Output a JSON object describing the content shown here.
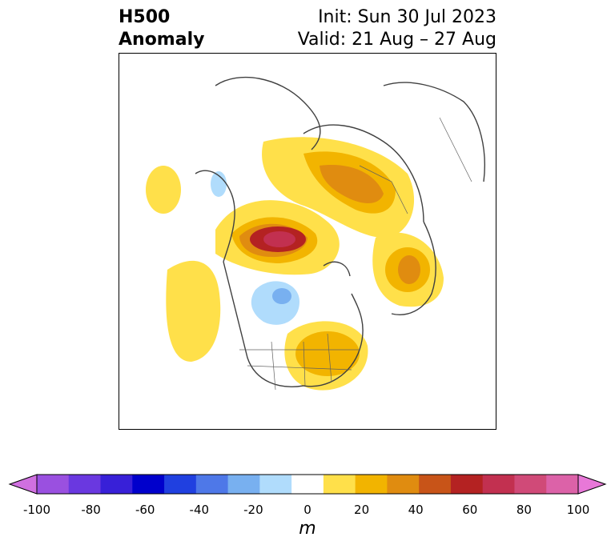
{
  "title": {
    "line1_left": "H500",
    "line2_left": "Anomaly",
    "line1_right": "Init: Sun 30 Jul 2023",
    "line2_right": "Valid: 21 Aug – 27 Aug"
  },
  "colorbar": {
    "unit": "m",
    "tick_labels": [
      "-100",
      "-80",
      "-60",
      "-40",
      "-20",
      "0",
      "20",
      "40",
      "60",
      "80",
      "100"
    ],
    "colors": [
      "#d070e0",
      "#9a50e0",
      "#6a38e0",
      "#3820d8",
      "#0000cc",
      "#2040e0",
      "#4e78e8",
      "#78b0f0",
      "#b0dcfc",
      "#ffffff",
      "#ffe04a",
      "#f2b400",
      "#e08c10",
      "#c85418",
      "#b42222",
      "#c23050",
      "#d04a78",
      "#dc62a8",
      "#e878d8"
    ]
  },
  "map": {
    "projection": "polar stereographic",
    "features": [
      "coastlines",
      "country borders",
      "US states"
    ]
  }
}
